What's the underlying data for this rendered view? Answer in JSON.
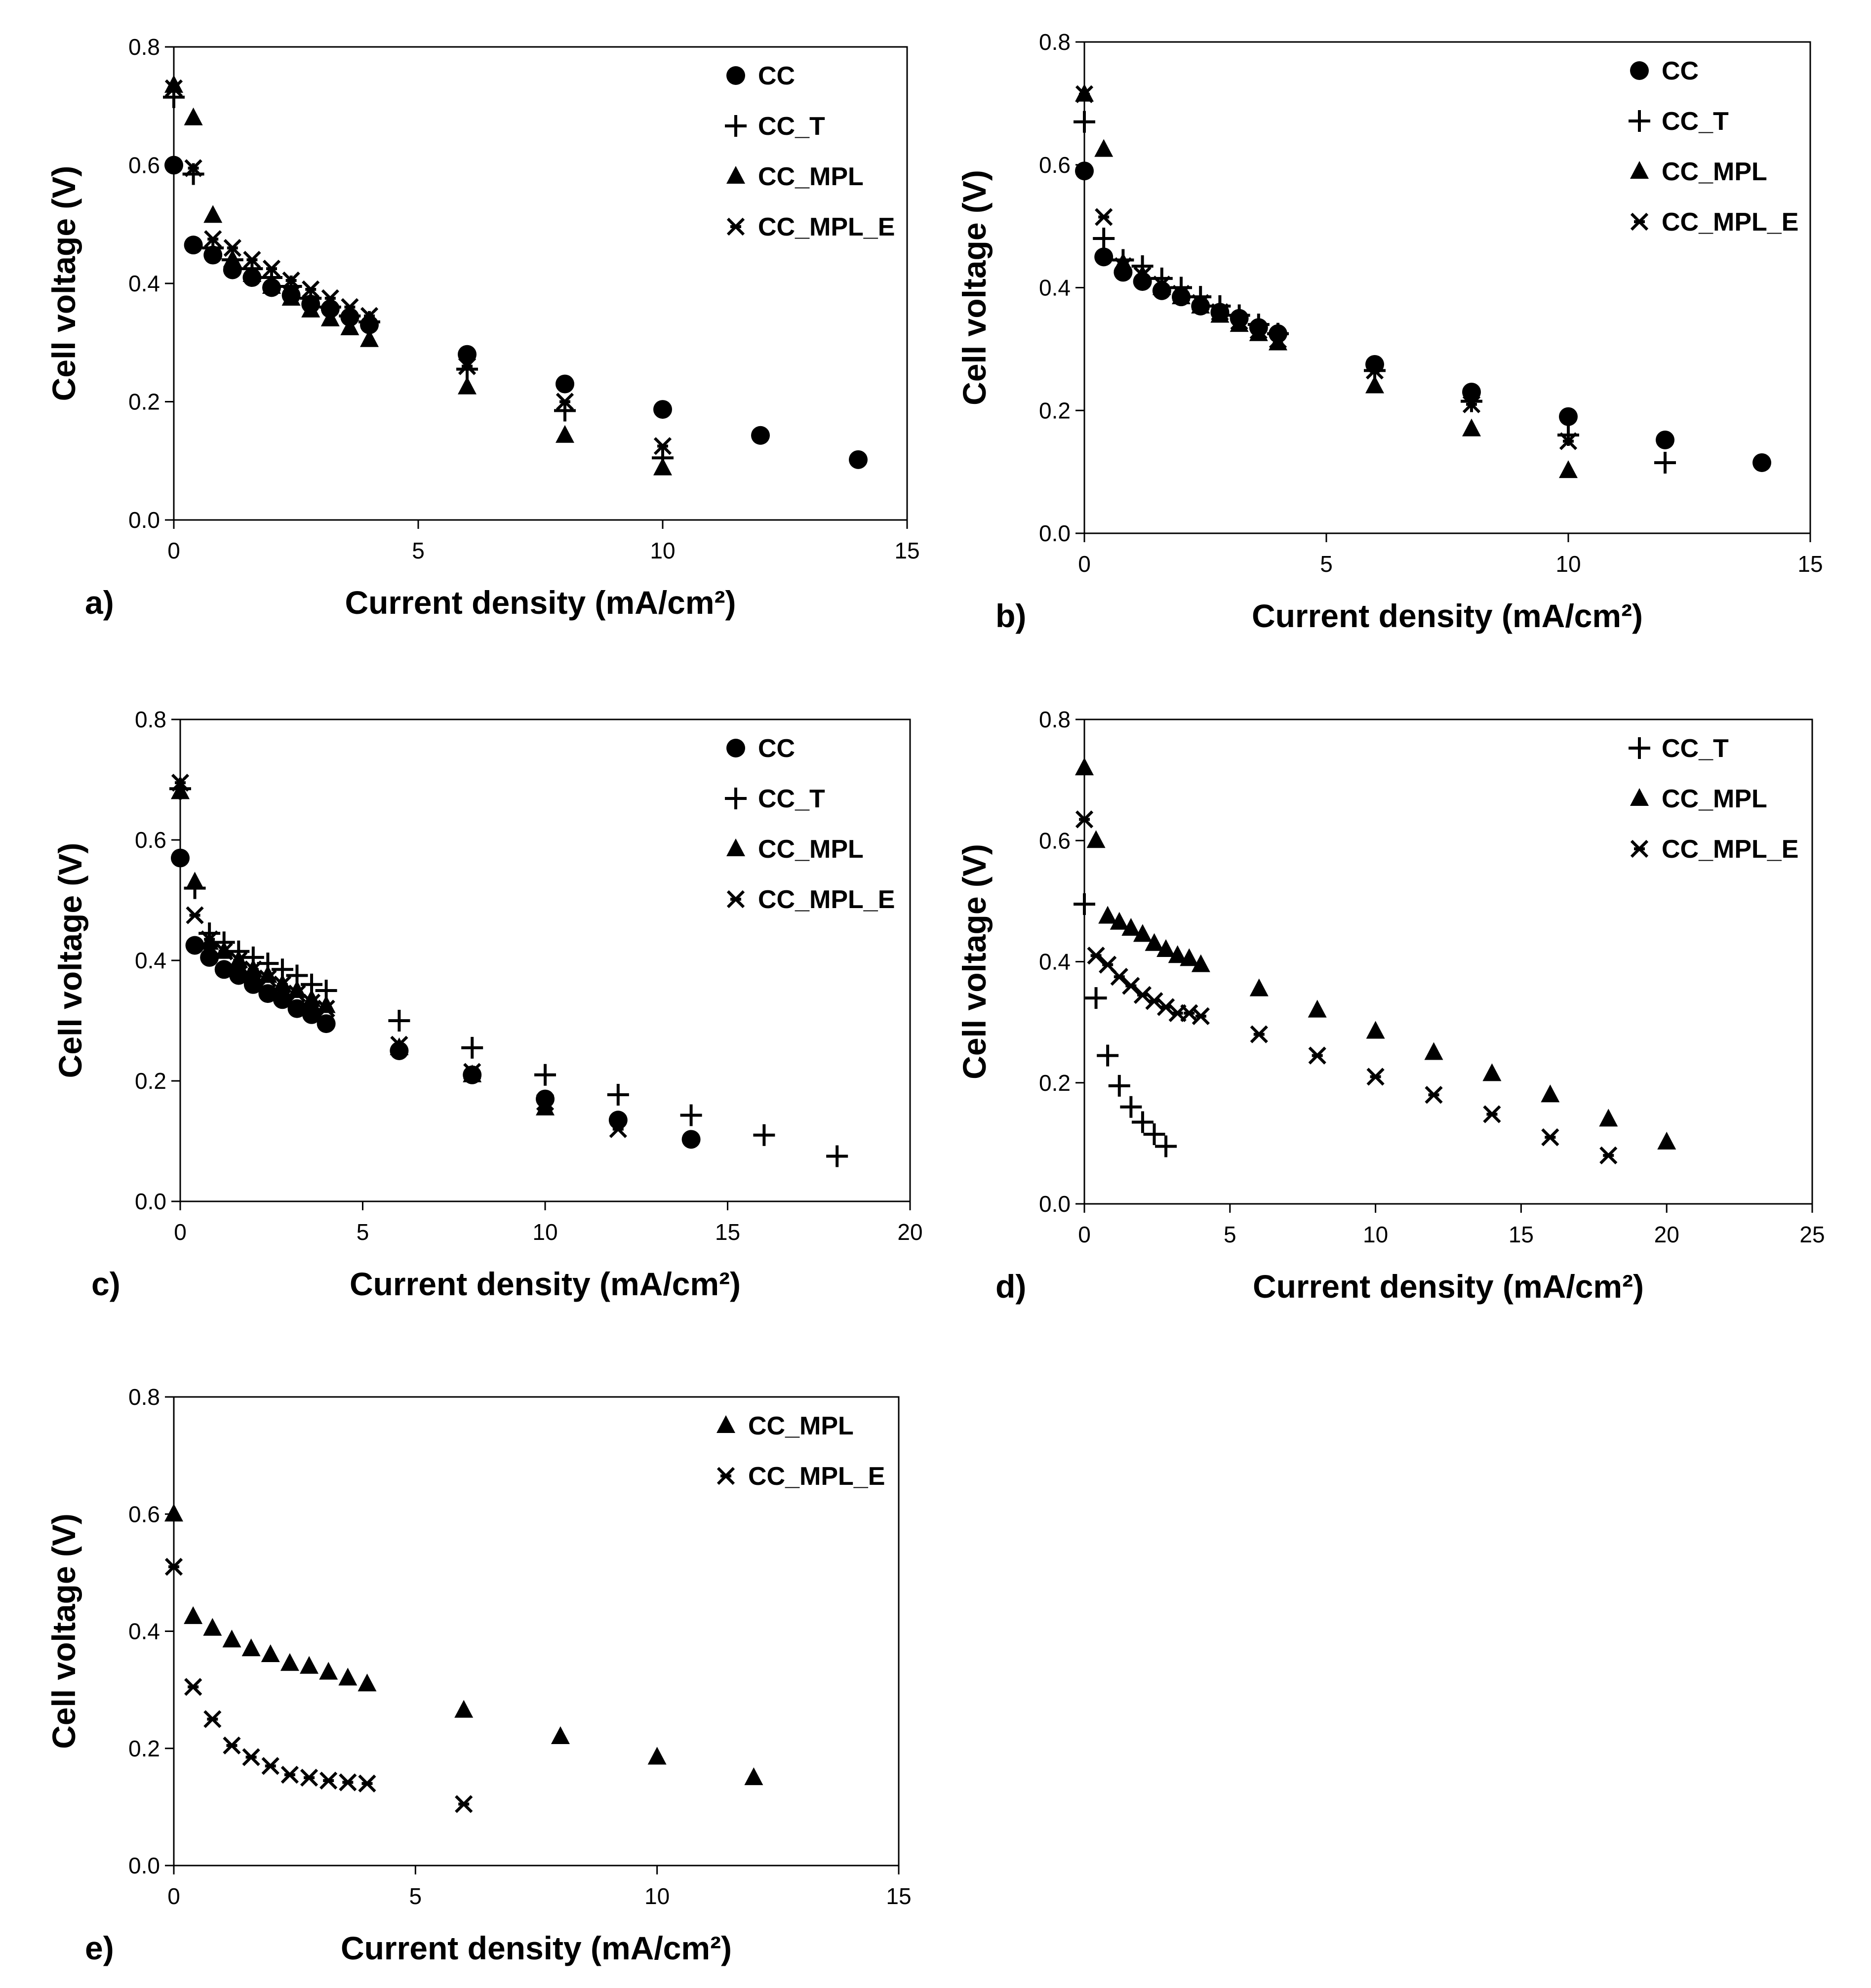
{
  "chart_data": [
    {
      "panel": "a)",
      "type": "scatter",
      "xlabel": "Current density (mA/cm²)",
      "ylabel": "Cell voltage (V)",
      "xlim": [
        0,
        15
      ],
      "ylim": [
        0,
        0.8
      ],
      "xticks": [
        "0",
        "5",
        "10",
        "15"
      ],
      "yticks": [
        "0.0",
        "0.2",
        "0.4",
        "0.6",
        "0.8"
      ],
      "grid": false,
      "legend": "top-right",
      "series": [
        {
          "name": "CC",
          "marker": "circle",
          "x": [
            0,
            0.4,
            0.8,
            1.2,
            1.6,
            2,
            2.4,
            2.8,
            3.2,
            3.6,
            4,
            6,
            8,
            10,
            12,
            14
          ],
          "y": [
            0.6,
            0.465,
            0.448,
            0.423,
            0.41,
            0.393,
            0.38,
            0.365,
            0.357,
            0.343,
            0.33,
            0.28,
            0.23,
            0.187,
            0.143,
            0.102
          ]
        },
        {
          "name": "CC_T",
          "marker": "plus",
          "x": [
            0,
            0.4,
            0.8,
            1.2,
            1.6,
            2,
            2.4,
            2.8,
            3.2,
            3.6,
            4,
            6,
            8,
            10
          ],
          "y": [
            0.715,
            0.585,
            0.46,
            0.44,
            0.425,
            0.41,
            0.395,
            0.375,
            0.36,
            0.345,
            0.335,
            0.255,
            0.185,
            0.105
          ]
        },
        {
          "name": "CC_MPL",
          "marker": "triangle",
          "x": [
            0,
            0.4,
            0.8,
            1.2,
            1.6,
            2,
            2.4,
            2.8,
            3.2,
            3.6,
            4,
            6,
            8,
            10
          ],
          "y": [
            0.735,
            0.68,
            0.515,
            0.44,
            0.415,
            0.395,
            0.375,
            0.355,
            0.34,
            0.325,
            0.305,
            0.225,
            0.143,
            0.088
          ]
        },
        {
          "name": "CC_MPL_E",
          "marker": "star",
          "x": [
            0,
            0.4,
            0.8,
            1.2,
            1.6,
            2,
            2.4,
            2.8,
            3.2,
            3.6,
            4,
            6,
            8,
            10
          ],
          "y": [
            0.73,
            0.595,
            0.475,
            0.46,
            0.44,
            0.425,
            0.405,
            0.39,
            0.375,
            0.36,
            0.345,
            0.26,
            0.2,
            0.125
          ]
        }
      ]
    },
    {
      "panel": "b)",
      "type": "scatter",
      "xlabel": "Current density (mA/cm²)",
      "ylabel": "Cell voltage (V)",
      "xlim": [
        0,
        15
      ],
      "ylim": [
        0,
        0.8
      ],
      "xticks": [
        "0",
        "5",
        "10",
        "15"
      ],
      "yticks": [
        "0.0",
        "0.2",
        "0.4",
        "0.6",
        "0.8"
      ],
      "grid": false,
      "legend": "top-right",
      "series": [
        {
          "name": "CC",
          "marker": "circle",
          "x": [
            0,
            0.4,
            0.8,
            1.2,
            1.6,
            2,
            2.4,
            2.8,
            3.2,
            3.6,
            4,
            6,
            8,
            10,
            12,
            14
          ],
          "y": [
            0.59,
            0.45,
            0.425,
            0.41,
            0.395,
            0.385,
            0.37,
            0.36,
            0.35,
            0.335,
            0.325,
            0.275,
            0.23,
            0.19,
            0.152,
            0.115
          ]
        },
        {
          "name": "CC_T",
          "marker": "plus",
          "x": [
            0,
            0.4,
            0.8,
            1.2,
            1.6,
            2,
            2.4,
            2.8,
            3.2,
            3.6,
            4,
            6,
            8,
            10,
            12
          ],
          "y": [
            0.67,
            0.48,
            0.445,
            0.435,
            0.415,
            0.4,
            0.385,
            0.37,
            0.355,
            0.34,
            0.325,
            0.265,
            0.215,
            0.16,
            0.115
          ]
        },
        {
          "name": "CC_MPL",
          "marker": "triangle",
          "x": [
            0,
            0.4,
            0.8,
            1.2,
            1.6,
            2,
            2.4,
            2.8,
            3.2,
            3.6,
            4,
            6,
            8,
            10
          ],
          "y": [
            0.715,
            0.625,
            0.44,
            0.42,
            0.4,
            0.385,
            0.37,
            0.355,
            0.34,
            0.325,
            0.31,
            0.24,
            0.17,
            0.102
          ]
        },
        {
          "name": "CC_MPL_E",
          "marker": "star",
          "x": [
            0,
            0.4,
            0.8,
            1.2,
            1.6,
            2,
            2.4,
            2.8,
            3.2,
            3.6,
            4,
            6,
            8,
            10
          ],
          "y": [
            0.715,
            0.515,
            0.435,
            0.42,
            0.405,
            0.39,
            0.375,
            0.36,
            0.345,
            0.33,
            0.315,
            0.265,
            0.21,
            0.15
          ]
        }
      ]
    },
    {
      "panel": "c)",
      "type": "scatter",
      "xlabel": "Current density (mA/cm²)",
      "ylabel": "Cell voltage (V)",
      "xlim": [
        0,
        20
      ],
      "ylim": [
        0,
        0.8
      ],
      "xticks": [
        "0",
        "5",
        "10",
        "15",
        "20"
      ],
      "yticks": [
        "0.0",
        "0.2",
        "0.4",
        "0.6",
        "0.8"
      ],
      "grid": false,
      "legend": "top-right",
      "series": [
        {
          "name": "CC",
          "marker": "circle",
          "x": [
            0,
            0.4,
            0.8,
            1.2,
            1.6,
            2,
            2.4,
            2.8,
            3.2,
            3.6,
            4,
            6,
            8,
            10,
            12,
            14
          ],
          "y": [
            0.57,
            0.425,
            0.405,
            0.385,
            0.375,
            0.36,
            0.345,
            0.335,
            0.32,
            0.31,
            0.295,
            0.25,
            0.21,
            0.17,
            0.135,
            0.103
          ]
        },
        {
          "name": "CC_T",
          "marker": "plus",
          "x": [
            0,
            0.4,
            0.8,
            1.2,
            1.6,
            2,
            2.4,
            2.8,
            3.2,
            3.6,
            4,
            6,
            8,
            10,
            12,
            14,
            16,
            18
          ],
          "y": [
            0.685,
            0.52,
            0.445,
            0.43,
            0.415,
            0.405,
            0.395,
            0.385,
            0.375,
            0.36,
            0.35,
            0.3,
            0.255,
            0.21,
            0.177,
            0.143,
            0.11,
            0.075
          ]
        },
        {
          "name": "CC_MPL",
          "marker": "triangle",
          "x": [
            0,
            0.4,
            0.8,
            1.2,
            1.6,
            2,
            2.4,
            2.8,
            3.2,
            3.6,
            4,
            6,
            8,
            10
          ],
          "y": [
            0.68,
            0.53,
            0.43,
            0.415,
            0.4,
            0.385,
            0.375,
            0.36,
            0.35,
            0.335,
            0.325,
            0.255,
            0.21,
            0.155
          ]
        },
        {
          "name": "CC_MPL_E",
          "marker": "star",
          "x": [
            0,
            0.4,
            0.8,
            1.2,
            1.6,
            2,
            2.4,
            2.8,
            3.2,
            3.6,
            4,
            6,
            8,
            10,
            12
          ],
          "y": [
            0.695,
            0.475,
            0.435,
            0.415,
            0.4,
            0.385,
            0.37,
            0.36,
            0.345,
            0.33,
            0.32,
            0.26,
            0.215,
            0.165,
            0.12
          ]
        }
      ]
    },
    {
      "panel": "d)",
      "type": "scatter",
      "xlabel": "Current density (mA/cm²)",
      "ylabel": "Cell voltage (V)",
      "xlim": [
        0,
        25
      ],
      "ylim": [
        0,
        0.8
      ],
      "xticks": [
        "0",
        "5",
        "10",
        "15",
        "20",
        "25"
      ],
      "yticks": [
        "0.0",
        "0.2",
        "0.4",
        "0.6",
        "0.8"
      ],
      "grid": false,
      "legend": "top-right",
      "series": [
        {
          "name": "CC_T",
          "marker": "plus",
          "x": [
            0,
            0.4,
            0.8,
            1.2,
            1.6,
            2,
            2.4,
            2.8
          ],
          "y": [
            0.495,
            0.34,
            0.245,
            0.195,
            0.16,
            0.135,
            0.115,
            0.095
          ]
        },
        {
          "name": "CC_MPL",
          "marker": "triangle",
          "x": [
            0,
            0.4,
            0.8,
            1.2,
            1.6,
            2,
            2.4,
            2.8,
            3.2,
            3.6,
            4,
            6,
            8,
            10,
            12,
            14,
            16,
            18,
            20
          ],
          "y": [
            0.72,
            0.6,
            0.475,
            0.465,
            0.455,
            0.445,
            0.43,
            0.42,
            0.41,
            0.405,
            0.395,
            0.355,
            0.32,
            0.285,
            0.25,
            0.215,
            0.18,
            0.14,
            0.102
          ]
        },
        {
          "name": "CC_MPL_E",
          "marker": "star",
          "x": [
            0,
            0.4,
            0.8,
            1.2,
            1.6,
            2,
            2.4,
            2.8,
            3.2,
            3.6,
            4,
            6,
            8,
            10,
            12,
            14,
            16,
            18
          ],
          "y": [
            0.635,
            0.41,
            0.395,
            0.375,
            0.36,
            0.345,
            0.335,
            0.325,
            0.315,
            0.315,
            0.31,
            0.28,
            0.245,
            0.21,
            0.18,
            0.148,
            0.11,
            0.08
          ]
        }
      ]
    },
    {
      "panel": "e)",
      "type": "scatter",
      "xlabel": "Current density (mA/cm²)",
      "ylabel": "Cell voltage (V)",
      "xlim": [
        0,
        15
      ],
      "ylim": [
        0,
        0.8
      ],
      "xticks": [
        "0",
        "5",
        "10",
        "15"
      ],
      "yticks": [
        "0.0",
        "0.2",
        "0.4",
        "0.6",
        "0.8"
      ],
      "grid": false,
      "legend": "top-right",
      "series": [
        {
          "name": "CC_MPL",
          "marker": "triangle",
          "x": [
            0,
            0.4,
            0.8,
            1.2,
            1.6,
            2,
            2.4,
            2.8,
            3.2,
            3.6,
            4,
            6,
            8,
            10,
            12
          ],
          "y": [
            0.6,
            0.425,
            0.405,
            0.385,
            0.37,
            0.36,
            0.345,
            0.34,
            0.33,
            0.32,
            0.31,
            0.265,
            0.22,
            0.185,
            0.15
          ]
        },
        {
          "name": "CC_MPL_E",
          "marker": "star",
          "x": [
            0,
            0.4,
            0.8,
            1.2,
            1.6,
            2,
            2.4,
            2.8,
            3.2,
            3.6,
            4,
            6
          ],
          "y": [
            0.51,
            0.305,
            0.25,
            0.205,
            0.185,
            0.17,
            0.155,
            0.15,
            0.145,
            0.142,
            0.14,
            0.105
          ]
        }
      ]
    }
  ]
}
